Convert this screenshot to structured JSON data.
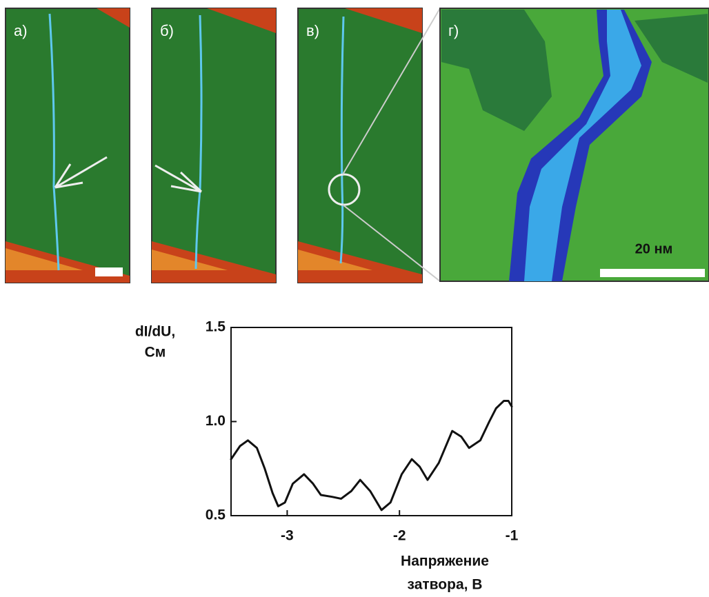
{
  "panels": [
    {
      "label": "а)"
    },
    {
      "label": "б)"
    },
    {
      "label": "в)"
    },
    {
      "label": "г)",
      "scale": "20 нм"
    }
  ],
  "chart_data": {
    "type": "line",
    "ylabel": [
      "dI/dU,",
      "См"
    ],
    "xlabel": [
      "Напряжение",
      "затвора, В"
    ],
    "xlim": [
      -3.5,
      -1
    ],
    "xticks": [
      -3,
      -2,
      -1
    ],
    "ylim": [
      0.5,
      1.5
    ],
    "yticks": [
      0.5,
      {
        "value": 1,
        "label": "1.0"
      },
      1.5
    ],
    "x": [
      -3.5,
      -3.42,
      -3.35,
      -3.27,
      -3.2,
      -3.13,
      -3.08,
      -3.02,
      -2.95,
      -2.85,
      -2.77,
      -2.7,
      -2.6,
      -2.52,
      -2.43,
      -2.35,
      -2.26,
      -2.16,
      -2.08,
      -1.98,
      -1.89,
      -1.82,
      -1.75,
      -1.65,
      -1.53,
      -1.45,
      -1.38,
      -1.28,
      -1.2,
      -1.14,
      -1.07,
      -1.03,
      -1.0
    ],
    "series": [
      {
        "color": "#111111",
        "values": [
          0.8,
          0.87,
          0.9,
          0.86,
          0.75,
          0.62,
          0.55,
          0.57,
          0.67,
          0.72,
          0.67,
          0.61,
          0.6,
          0.59,
          0.63,
          0.69,
          0.63,
          0.53,
          0.57,
          0.72,
          0.8,
          0.76,
          0.69,
          0.78,
          0.95,
          0.92,
          0.86,
          0.9,
          1.0,
          1.07,
          1.11,
          1.11,
          1.08
        ]
      }
    ]
  }
}
